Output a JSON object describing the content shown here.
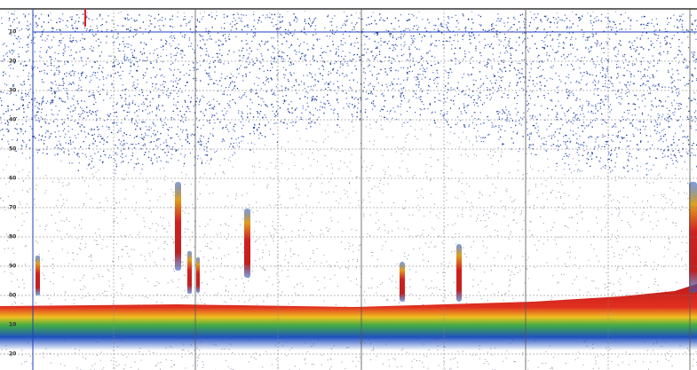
{
  "depth_labels": [
    "10",
    "20",
    "30",
    "40",
    "50",
    "60",
    "70",
    "80",
    "90",
    "00",
    "10",
    "20"
  ]
}
